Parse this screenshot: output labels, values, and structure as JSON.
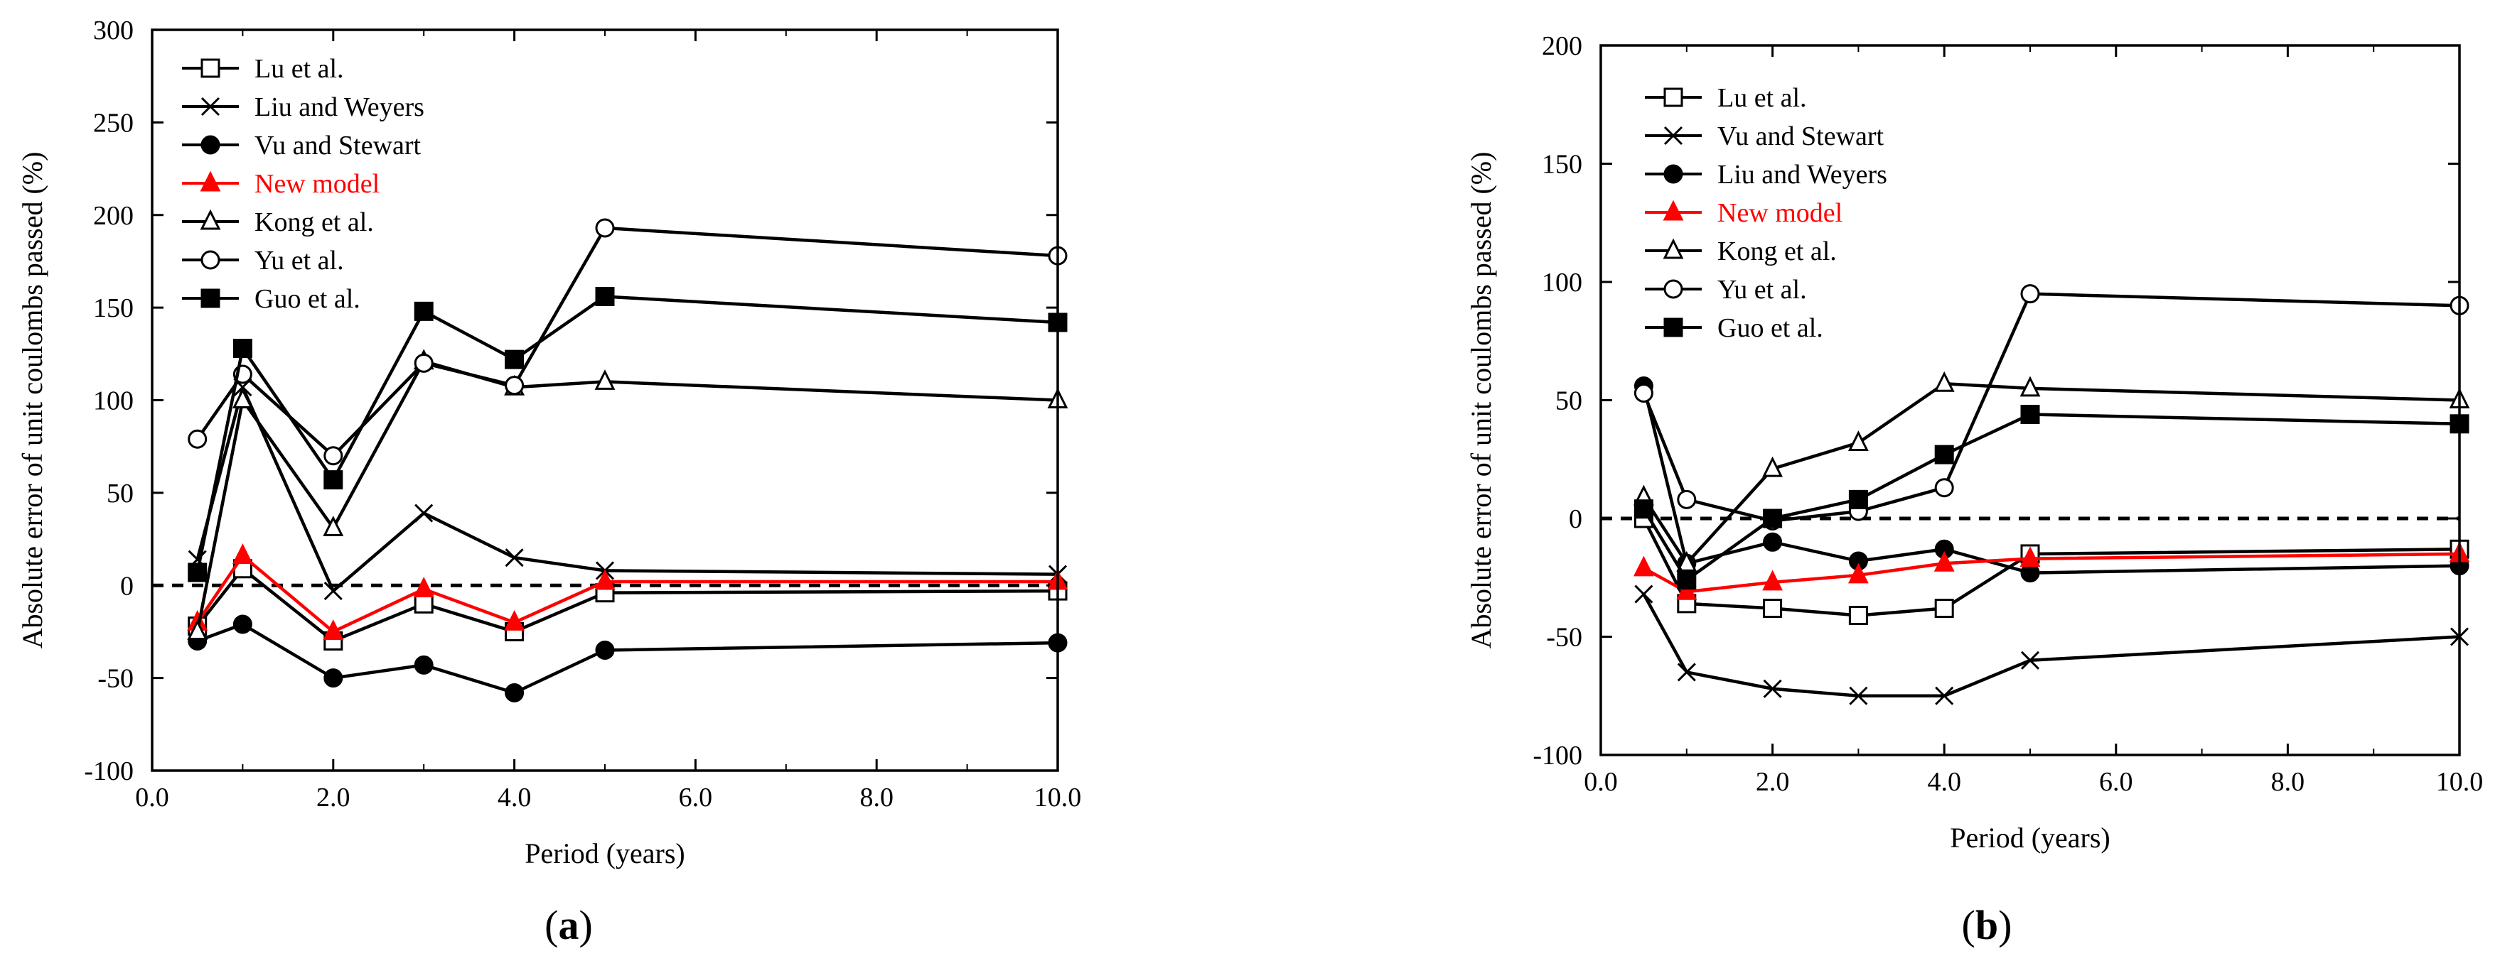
{
  "chart_data": [
    {
      "type": "line",
      "panel_label": "(a)",
      "xlabel": "Period (years)",
      "ylabel": "Absolute error of unit coulombs passed (%)",
      "xlim": [
        0,
        10
      ],
      "ylim": [
        -100,
        300
      ],
      "xticks": [
        0,
        2,
        4,
        6,
        8,
        10
      ],
      "xtick_labels": [
        "0.0",
        "2.0",
        "4.0",
        "6.0",
        "8.0",
        "10.0"
      ],
      "yticks": [
        -100,
        -50,
        0,
        50,
        100,
        150,
        200,
        250,
        300
      ],
      "ytick_labels": [
        "-100",
        "-50",
        "0",
        "50",
        "100",
        "150",
        "200",
        "250",
        "300"
      ],
      "reference_line": 0,
      "legend_position": "top-left",
      "series": [
        {
          "name": "Lu et al.",
          "marker": "open-square",
          "color": "#000000",
          "x": [
            0.5,
            1,
            2,
            3,
            4,
            5,
            10
          ],
          "values": [
            -22,
            9,
            -30,
            -10,
            -25,
            -4,
            -3
          ]
        },
        {
          "name": "Liu and Weyers",
          "marker": "x",
          "color": "#000000",
          "x": [
            0.5,
            1,
            2,
            3,
            4,
            5,
            10
          ],
          "values": [
            14,
            107,
            -3,
            39,
            15,
            8,
            6
          ]
        },
        {
          "name": "Vu and Stewart",
          "marker": "filled-circle",
          "color": "#000000",
          "x": [
            0.5,
            1,
            2,
            3,
            4,
            5,
            10
          ],
          "values": [
            -30,
            -21,
            -50,
            -43,
            -58,
            -35,
            -31
          ]
        },
        {
          "name": "New model",
          "marker": "filled-triangle",
          "color": "#ff0000",
          "x": [
            0.5,
            1,
            2,
            3,
            4,
            5,
            10
          ],
          "values": [
            -20,
            16,
            -25,
            -2,
            -20,
            2,
            2
          ]
        },
        {
          "name": "Kong et al.",
          "marker": "open-triangle",
          "color": "#000000",
          "x": [
            0.5,
            1,
            2,
            3,
            4,
            5,
            10
          ],
          "values": [
            -25,
            100,
            31,
            121,
            107,
            110,
            100
          ]
        },
        {
          "name": "Yu et al.",
          "marker": "open-circle",
          "color": "#000000",
          "x": [
            0.5,
            1,
            2,
            3,
            4,
            5,
            10
          ],
          "values": [
            79,
            114,
            70,
            120,
            108,
            193,
            178
          ]
        },
        {
          "name": "Guo et al.",
          "marker": "filled-square",
          "color": "#000000",
          "x": [
            0.5,
            1,
            2,
            3,
            4,
            5,
            10
          ],
          "values": [
            7,
            128,
            57,
            148,
            122,
            156,
            142
          ]
        }
      ]
    },
    {
      "type": "line",
      "panel_label": "(b)",
      "xlabel": "Period (years)",
      "ylabel": "Absolute error of unit coulombs passed (%)",
      "xlim": [
        0,
        10
      ],
      "ylim": [
        -100,
        200
      ],
      "xticks": [
        0,
        2,
        4,
        6,
        8,
        10
      ],
      "xtick_labels": [
        "0.0",
        "2.0",
        "4.0",
        "6.0",
        "8.0",
        "10.0"
      ],
      "yticks": [
        -100,
        -50,
        0,
        50,
        100,
        150,
        200
      ],
      "ytick_labels": [
        "-100",
        "-50",
        "0",
        "50",
        "100",
        "150",
        "200"
      ],
      "reference_line": 0,
      "legend_position": "top-left",
      "series": [
        {
          "name": "Lu et al.",
          "marker": "open-square",
          "color": "#000000",
          "x": [
            0.5,
            1,
            2,
            3,
            4,
            5,
            10
          ],
          "values": [
            0,
            -36,
            -38,
            -41,
            -38,
            -15,
            -13
          ]
        },
        {
          "name": "Vu and Stewart",
          "marker": "x",
          "color": "#000000",
          "x": [
            0.5,
            1,
            2,
            3,
            4,
            5,
            10
          ],
          "values": [
            -32,
            -65,
            -72,
            -75,
            -75,
            -60,
            -50
          ]
        },
        {
          "name": "Liu and Weyers",
          "marker": "filled-circle",
          "color": "#000000",
          "x": [
            0.5,
            1,
            2,
            3,
            4,
            5,
            10
          ],
          "values": [
            56,
            -19,
            -10,
            -18,
            -13,
            -23,
            -20
          ]
        },
        {
          "name": "New model",
          "marker": "filled-triangle",
          "color": "#ff0000",
          "x": [
            0.5,
            1,
            2,
            3,
            4,
            5,
            10
          ],
          "values": [
            -21,
            -31,
            -27,
            -24,
            -19,
            -17,
            -15
          ]
        },
        {
          "name": "Kong et al.",
          "marker": "open-triangle",
          "color": "#000000",
          "x": [
            0.5,
            1,
            2,
            3,
            4,
            5,
            10
          ],
          "values": [
            9,
            -19,
            21,
            32,
            57,
            55,
            50
          ]
        },
        {
          "name": "Yu et al.",
          "marker": "open-circle",
          "color": "#000000",
          "x": [
            0.5,
            1,
            2,
            3,
            4,
            5,
            10
          ],
          "values": [
            53,
            8,
            -1,
            3,
            13,
            95,
            90
          ]
        },
        {
          "name": "Guo et al.",
          "marker": "filled-square",
          "color": "#000000",
          "x": [
            0.5,
            1,
            2,
            3,
            4,
            5,
            10
          ],
          "values": [
            4,
            -26,
            0,
            8,
            27,
            44,
            40
          ]
        }
      ]
    }
  ]
}
